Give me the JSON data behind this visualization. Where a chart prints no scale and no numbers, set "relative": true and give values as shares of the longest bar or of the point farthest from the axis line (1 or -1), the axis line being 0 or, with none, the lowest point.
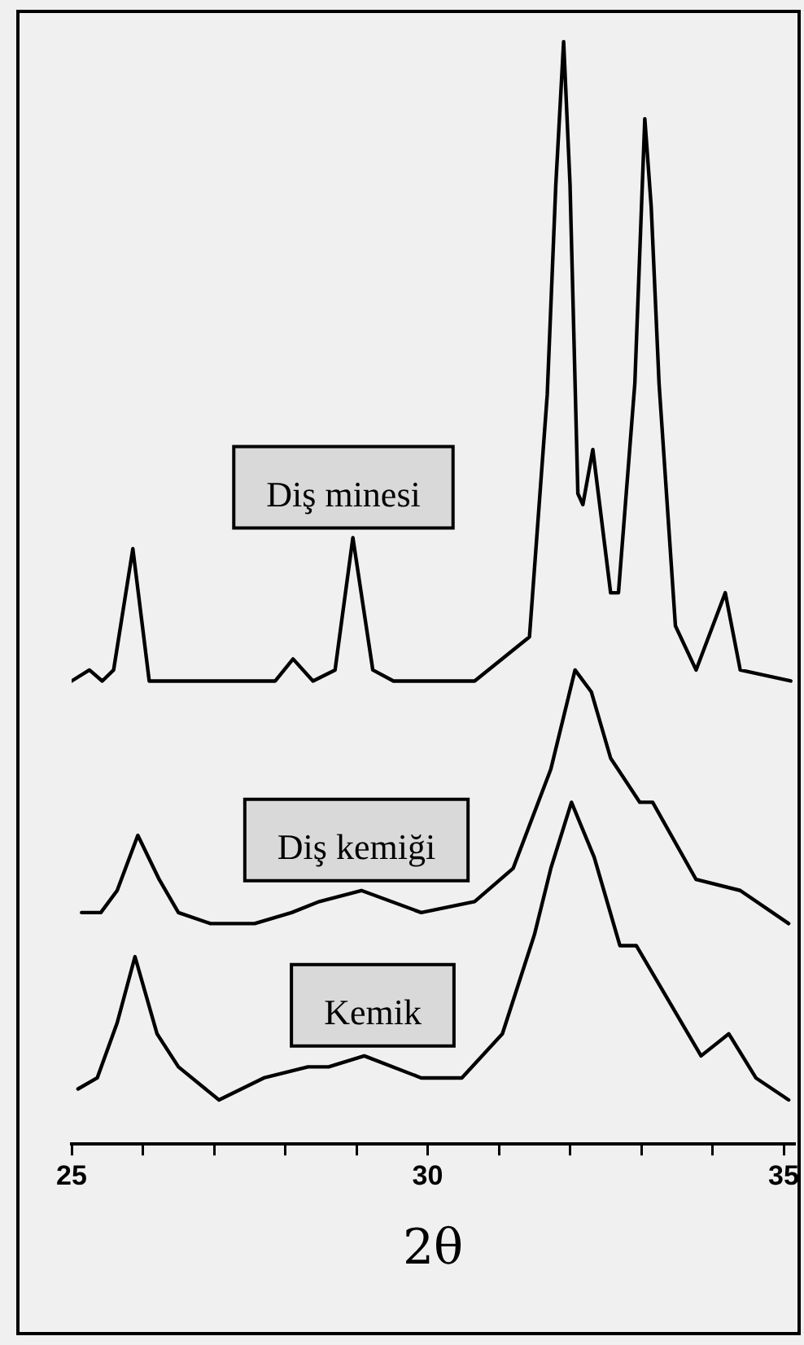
{
  "chart_data": {
    "type": "line",
    "relative": true,
    "xlabel": "2θ",
    "xlim": [
      25,
      35.15
    ],
    "xticks": [
      25,
      {
        "value": 26,
        "label": null
      },
      {
        "value": 27,
        "label": null
      },
      {
        "value": 28,
        "label": null
      },
      {
        "value": 29,
        "label": null
      },
      30,
      {
        "value": 31,
        "label": null
      },
      {
        "value": 32,
        "label": null
      },
      {
        "value": 33,
        "label": null
      },
      {
        "value": 34,
        "label": null
      },
      35
    ],
    "legend": false,
    "grid": false,
    "marker": "none",
    "line_style": "solid",
    "series": [
      {
        "name": "Diş minesi",
        "color": "#000000",
        "x": [
          25.0,
          25.25,
          25.43,
          25.59,
          25.86,
          26.09,
          26.5,
          27.86,
          28.11,
          28.39,
          28.7,
          28.95,
          29.23,
          29.52,
          29.91,
          30.66,
          31.43,
          31.68,
          31.8,
          31.91,
          32.0,
          32.11,
          32.18,
          32.32,
          32.57,
          32.68,
          32.91,
          33.05,
          33.14,
          33.25,
          33.48,
          33.77,
          34.18,
          34.39,
          35.1
        ],
        "values": [
          0.42,
          0.43,
          0.42,
          0.43,
          0.54,
          0.42,
          0.42,
          0.42,
          0.44,
          0.42,
          0.43,
          0.55,
          0.43,
          0.42,
          0.42,
          0.42,
          0.46,
          0.68,
          0.87,
          1,
          0.87,
          0.59,
          0.58,
          0.63,
          0.5,
          0.5,
          0.69,
          0.93,
          0.85,
          0.69,
          0.47,
          0.43,
          0.5,
          0.43,
          0.42
        ]
      },
      {
        "name": "Diş kemiği",
        "color": "#000000",
        "x": [
          25.14,
          25.41,
          25.64,
          25.93,
          26.23,
          26.5,
          26.95,
          27.57,
          28.09,
          28.48,
          29.07,
          29.91,
          30.66,
          31.2,
          31.73,
          32.07,
          32.3,
          32.57,
          32.98,
          33.16,
          33.77,
          34.39,
          35.07
        ],
        "values": [
          0.21,
          0.21,
          0.23,
          0.28,
          0.24,
          0.21,
          0.2,
          0.2,
          0.21,
          0.22,
          0.23,
          0.21,
          0.22,
          0.25,
          0.34,
          0.43,
          0.41,
          0.35,
          0.31,
          0.31,
          0.24,
          0.23,
          0.2
        ]
      },
      {
        "name": "Kemik",
        "color": "#000000",
        "x": [
          25.09,
          25.36,
          25.64,
          25.89,
          26.2,
          26.5,
          27.07,
          27.7,
          28.32,
          28.61,
          29.11,
          29.91,
          30.48,
          31.05,
          31.5,
          31.73,
          32.02,
          32.34,
          32.7,
          32.93,
          33.84,
          34.23,
          34.61,
          35.07
        ],
        "values": [
          0.05,
          0.06,
          0.11,
          0.17,
          0.1,
          0.07,
          0.04,
          0.06,
          0.07,
          0.07,
          0.08,
          0.06,
          0.06,
          0.1,
          0.19,
          0.25,
          0.31,
          0.26,
          0.18,
          0.18,
          0.08,
          0.1,
          0.06,
          0.04
        ]
      }
    ]
  }
}
